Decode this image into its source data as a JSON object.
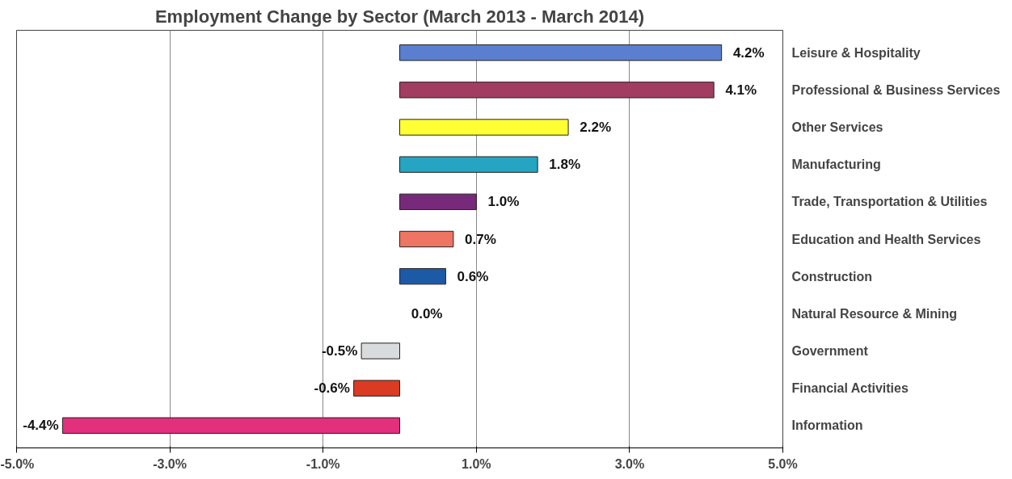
{
  "chart_data": {
    "type": "bar",
    "orientation": "horizontal",
    "title": "Employment Change by Sector (March 2013 - March 2014)",
    "categories": [
      "Leisure & Hospitality",
      "Professional & Business Services",
      "Other Services",
      "Manufacturing",
      "Trade, Transportation & Utilities",
      "Education and Health Services",
      "Construction",
      "Natural Resource & Mining",
      "Government",
      "Financial Activities",
      "Information"
    ],
    "values": [
      4.2,
      4.1,
      2.2,
      1.8,
      1.0,
      0.7,
      0.6,
      0.0,
      -0.5,
      -0.6,
      -4.4
    ],
    "colors": [
      "#5a7fd0",
      "#a23d62",
      "#ffff33",
      "#25a5c2",
      "#772a7a",
      "#ee7463",
      "#1c5aa6",
      "#ffffff",
      "#d9dcdc",
      "#db3b22",
      "#e2307c"
    ],
    "value_labels": [
      "4.2%",
      "4.1%",
      "2.2%",
      "1.8%",
      "1.0%",
      "0.7%",
      "0.6%",
      "0.0%",
      "-0.5%",
      "-0.6%",
      "-4.4%"
    ],
    "xlim": [
      -5,
      5
    ],
    "xticks": [
      {
        "value": -5,
        "label": "-5.0%"
      },
      {
        "value": -3,
        "label": "-3.0%"
      },
      {
        "value": -1,
        "label": "-1.0%"
      },
      {
        "value": 1,
        "label": "1.0%"
      },
      {
        "value": 3,
        "label": "3.0%"
      },
      {
        "value": 5,
        "label": "5.0%"
      }
    ],
    "grid": "x"
  }
}
